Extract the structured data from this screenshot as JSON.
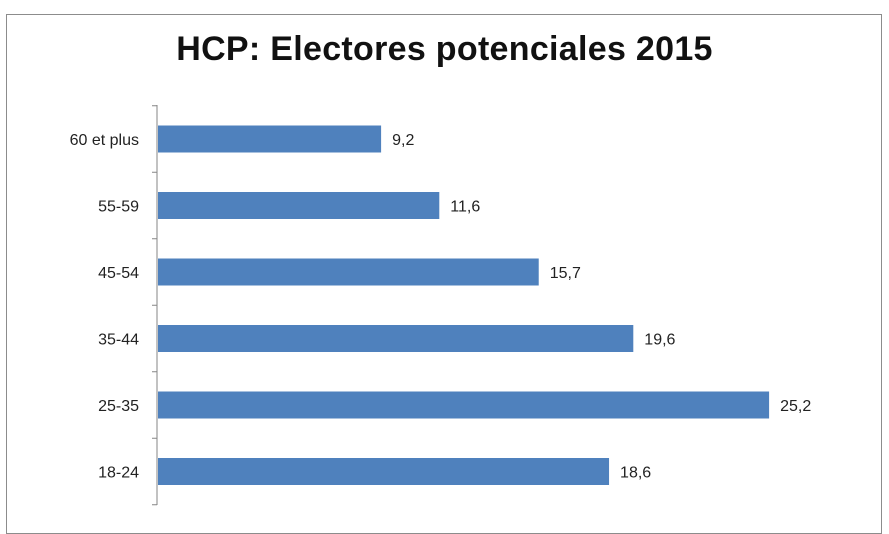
{
  "chart_data": {
    "type": "bar",
    "orientation": "horizontal",
    "title": "HCP: Electores potenciales 2015",
    "categories": [
      "60 et plus",
      "55-59",
      "45-54",
      "35-44",
      "25-35",
      "18-24"
    ],
    "values": [
      9.2,
      11.6,
      15.7,
      19.6,
      25.2,
      18.6
    ],
    "value_labels": [
      "9,2",
      "11,6",
      "15,7",
      "19,6",
      "25,2",
      "18,6"
    ],
    "xlim": [
      0,
      30
    ],
    "grid": false,
    "legend": "none",
    "bar_color": "#4f81bd",
    "axis_color": "#868686"
  }
}
